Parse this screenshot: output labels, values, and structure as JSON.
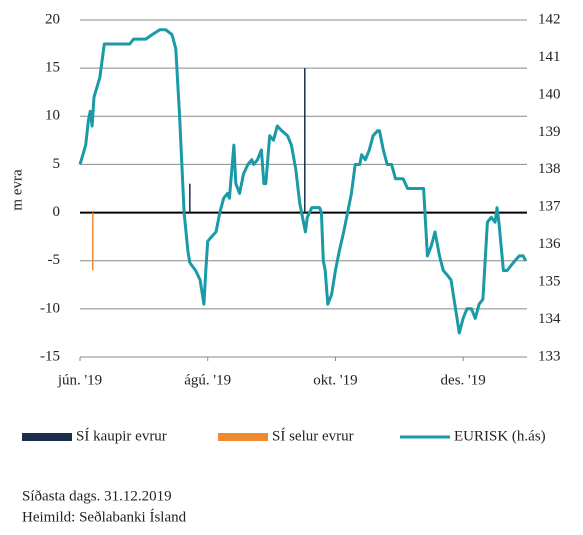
{
  "chart_data": {
    "type": "combo",
    "ylabel": "m evra",
    "xlim": [
      0,
      7
    ],
    "xticks": [
      {
        "value": 0,
        "label": "jún. '19"
      },
      {
        "value": 2,
        "label": "ágú. '19"
      },
      {
        "value": 4,
        "label": "okt. '19"
      },
      {
        "value": 6,
        "label": "des. '19"
      }
    ],
    "ylim": [
      -15,
      20
    ],
    "yticks": [
      -15,
      -10,
      -5,
      0,
      5,
      10,
      15,
      20
    ],
    "y2lim": [
      133,
      142
    ],
    "y2ticks": [
      133,
      134,
      135,
      136,
      137,
      138,
      139,
      140,
      141,
      142
    ],
    "grid": true,
    "legend": "bottom",
    "series": [
      {
        "name": "SÍ kaupir evrur",
        "type": "bar",
        "color": "#1c2f4a",
        "x": [
          1.72,
          3.52
        ],
        "values": [
          3,
          15
        ]
      },
      {
        "name": "SÍ selur evrur",
        "type": "bar",
        "color": "#f08a30",
        "x": [
          0.2
        ],
        "values": [
          -6
        ]
      },
      {
        "name": "EURISK (h.ás)",
        "type": "line",
        "axis": "y2",
        "color": "#1a9aa6",
        "x": [
          0,
          0.09,
          0.13,
          0.16,
          0.19,
          0.22,
          0.31,
          0.38,
          0.44,
          0.63,
          0.78,
          0.84,
          0.94,
          1.03,
          1.13,
          1.25,
          1.34,
          1.44,
          1.5,
          1.56,
          1.63,
          1.69,
          1.72,
          1.81,
          1.88,
          1.94,
          1.97,
          2.0,
          2.06,
          2.13,
          2.19,
          2.25,
          2.31,
          2.34,
          2.41,
          2.44,
          2.5,
          2.56,
          2.63,
          2.69,
          2.72,
          2.78,
          2.81,
          2.84,
          2.88,
          2.91,
          2.97,
          3.03,
          3.09,
          3.16,
          3.25,
          3.31,
          3.38,
          3.44,
          3.5,
          3.53,
          3.56,
          3.63,
          3.69,
          3.75,
          3.78,
          3.81,
          3.84,
          3.88,
          3.94,
          4.0,
          4.06,
          4.13,
          4.19,
          4.25,
          4.31,
          4.38,
          4.41,
          4.47,
          4.53,
          4.59,
          4.66,
          4.69,
          4.75,
          4.81,
          4.88,
          4.94,
          5.0,
          5.06,
          5.13,
          5.19,
          5.31,
          5.38,
          5.44,
          5.5,
          5.56,
          5.63,
          5.69,
          5.75,
          5.81,
          5.88,
          5.94,
          6.0,
          6.06,
          6.13,
          6.19,
          6.25,
          6.31,
          6.38,
          6.44,
          6.5,
          6.53,
          6.56,
          6.63,
          6.69,
          6.75,
          6.81,
          6.88,
          6.94,
          6.98
        ],
        "values": [
          138.14,
          138.66,
          139.3,
          139.56,
          139.17,
          139.94,
          140.46,
          141.36,
          141.36,
          141.36,
          141.36,
          141.49,
          141.49,
          141.49,
          141.61,
          141.74,
          141.74,
          141.61,
          141.23,
          139.43,
          136.86,
          135.83,
          135.52,
          135.31,
          135.06,
          134.41,
          135.31,
          136.09,
          136.21,
          136.34,
          136.86,
          137.24,
          137.37,
          137.24,
          138.66,
          137.63,
          137.37,
          137.89,
          138.14,
          138.27,
          138.14,
          138.27,
          138.4,
          138.53,
          137.63,
          137.63,
          138.91,
          138.79,
          139.17,
          139.04,
          138.91,
          138.66,
          138.01,
          137.11,
          136.6,
          136.34,
          136.73,
          136.99,
          136.99,
          136.99,
          136.86,
          135.57,
          135.31,
          134.41,
          134.67,
          135.31,
          135.83,
          136.34,
          136.86,
          137.37,
          138.14,
          138.14,
          138.4,
          138.27,
          138.53,
          138.91,
          139.04,
          139.04,
          138.53,
          138.14,
          138.14,
          137.76,
          137.76,
          137.76,
          137.5,
          137.5,
          137.5,
          137.5,
          135.7,
          135.96,
          136.34,
          135.7,
          135.31,
          135.19,
          135.06,
          134.29,
          133.64,
          134.03,
          134.29,
          134.29,
          134.03,
          134.41,
          134.54,
          136.6,
          136.73,
          136.6,
          136.99,
          136.6,
          135.31,
          135.31,
          135.44,
          135.57,
          135.7,
          135.7,
          135.57
        ]
      }
    ],
    "footnotes": [
      "Síðasta dags. 31.12.2019",
      "Heimild: Seðlabanki Ísland"
    ]
  }
}
